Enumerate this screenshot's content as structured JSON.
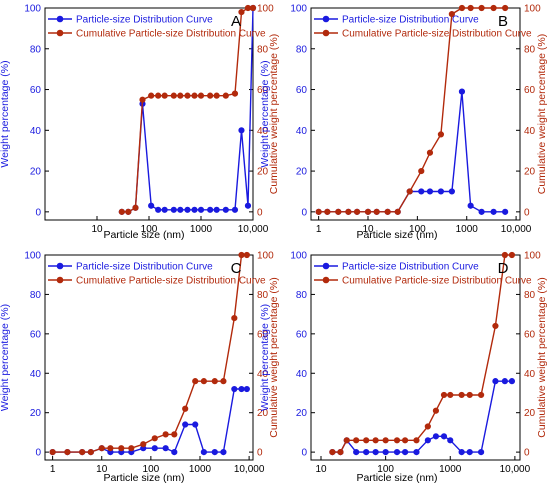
{
  "colors": {
    "weight": "#1a1adf",
    "cumulative": "#b22a0c",
    "marker_fill": "#ffffff",
    "frame": "#000000"
  },
  "shared": {
    "xlabel": "Particle size (nm)",
    "ylabel_left": "Weight percentage (%)",
    "ylabel_right": "Cumulative weight percentage (%)",
    "legend": [
      "Particle-size Distribution Curve",
      "Cumulative Particle-size Distribution Curve"
    ],
    "y_ticks": [
      "0",
      "20",
      "40",
      "60",
      "80",
      "100"
    ],
    "x_ticks": [
      "1",
      "10",
      "100",
      "1000",
      "10,000"
    ]
  },
  "chart_data": [
    {
      "panel": "A",
      "type": "line",
      "xscale": "log",
      "xlim": [
        1,
        10000
      ],
      "ylim": [
        -4,
        100
      ],
      "y2lim": [
        -4,
        100
      ],
      "x_tick_values": [
        10,
        100,
        1000,
        10000
      ],
      "x_tick_labels": [
        "10",
        "100",
        "1000",
        "10,000"
      ],
      "series": [
        {
          "name": "Particle-size Distribution Curve",
          "axis": "left",
          "x": [
            30,
            40,
            55,
            75,
            110,
            150,
            200,
            300,
            400,
            550,
            750,
            1000,
            1500,
            2000,
            3000,
            4500,
            6000,
            8000,
            10000
          ],
          "y": [
            0,
            0,
            2,
            53,
            3,
            1,
            1,
            1,
            1,
            1,
            1,
            1,
            1,
            1,
            1,
            1,
            40,
            3,
            100
          ]
        },
        {
          "name": "Cumulative Particle-size Distribution Curve",
          "axis": "right",
          "x": [
            30,
            40,
            55,
            75,
            110,
            150,
            200,
            300,
            400,
            550,
            750,
            1000,
            1500,
            2000,
            3000,
            4500,
            6000,
            8000,
            10000
          ],
          "y": [
            0,
            0,
            2,
            55,
            57,
            57,
            57,
            57,
            57,
            57,
            57,
            57,
            57,
            57,
            57,
            58,
            98,
            100,
            100
          ]
        }
      ]
    },
    {
      "panel": "B",
      "type": "line",
      "xscale": "log",
      "xlim": [
        0.7,
        12000
      ],
      "ylim": [
        -4,
        100
      ],
      "y2lim": [
        -4,
        100
      ],
      "x_tick_values": [
        1,
        10,
        100,
        1000,
        10000
      ],
      "x_tick_labels": [
        "1",
        "10",
        "100",
        "1000",
        "10,000"
      ],
      "series": [
        {
          "name": "Particle-size Distribution Curve",
          "axis": "left",
          "x": [
            1,
            1.5,
            2.5,
            4,
            6,
            10,
            15,
            25,
            40,
            70,
            120,
            180,
            300,
            500,
            800,
            1200,
            2000,
            3500,
            6000
          ],
          "y": [
            0,
            0,
            0,
            0,
            0,
            0,
            0,
            0,
            0,
            10,
            10,
            10,
            10,
            10,
            59,
            3,
            0,
            0,
            0
          ]
        },
        {
          "name": "Cumulative Particle-size Distribution Curve",
          "axis": "right",
          "x": [
            1,
            1.5,
            2.5,
            4,
            6,
            10,
            15,
            25,
            40,
            70,
            120,
            180,
            300,
            500,
            800,
            1200,
            2000,
            3500,
            6000
          ],
          "y": [
            0,
            0,
            0,
            0,
            0,
            0,
            0,
            0,
            0,
            10,
            20,
            29,
            38,
            97,
            100,
            100,
            100,
            100,
            100
          ]
        }
      ]
    },
    {
      "panel": "C",
      "type": "line",
      "xscale": "log",
      "xlim": [
        0.7,
        12000
      ],
      "ylim": [
        -4,
        100
      ],
      "y2lim": [
        -4,
        100
      ],
      "x_tick_values": [
        1,
        10,
        100,
        1000,
        10000
      ],
      "x_tick_labels": [
        "1",
        "10",
        "100",
        "1000",
        "10,000"
      ],
      "series": [
        {
          "name": "Particle-size Distribution Curve",
          "axis": "left",
          "x": [
            1,
            2,
            4,
            6,
            10,
            15,
            25,
            40,
            70,
            120,
            200,
            300,
            500,
            800,
            1200,
            2000,
            3000,
            5000,
            7000,
            9000
          ],
          "y": [
            0,
            0,
            0,
            0,
            2,
            0,
            0,
            0,
            2,
            2,
            2,
            0,
            14,
            14,
            0,
            0,
            0,
            32,
            32,
            32
          ]
        },
        {
          "name": "Cumulative Particle-size Distribution Curve",
          "axis": "right",
          "x": [
            1,
            2,
            4,
            6,
            10,
            15,
            25,
            40,
            70,
            120,
            200,
            300,
            500,
            800,
            1200,
            2000,
            3000,
            5000,
            7000,
            9000
          ],
          "y": [
            0,
            0,
            0,
            0,
            2,
            2,
            2,
            2,
            4,
            7,
            9,
            9,
            22,
            36,
            36,
            36,
            36,
            68,
            100,
            100
          ]
        }
      ]
    },
    {
      "panel": "D",
      "type": "line",
      "xscale": "log",
      "xlim": [
        7,
        12000
      ],
      "ylim": [
        -4,
        100
      ],
      "y2lim": [
        -4,
        100
      ],
      "x_tick_values": [
        10,
        100,
        1000,
        10000
      ],
      "x_tick_labels": [
        "10",
        "100",
        "1000",
        "10,000"
      ],
      "series": [
        {
          "name": "Particle-size Distribution Curve",
          "axis": "left",
          "x": [
            15,
            20,
            25,
            35,
            50,
            70,
            100,
            150,
            200,
            300,
            450,
            600,
            800,
            1000,
            1500,
            2000,
            3000,
            5000,
            7000,
            9000
          ],
          "y": [
            0,
            0,
            6,
            0,
            0,
            0,
            0,
            0,
            0,
            0,
            6,
            8,
            8,
            6,
            0,
            0,
            0,
            36,
            36,
            36
          ]
        },
        {
          "name": "Cumulative Particle-size Distribution Curve",
          "axis": "right",
          "x": [
            15,
            20,
            25,
            35,
            50,
            70,
            100,
            150,
            200,
            300,
            450,
            600,
            800,
            1000,
            1500,
            2000,
            3000,
            5000,
            7000,
            9000
          ],
          "y": [
            0,
            0,
            6,
            6,
            6,
            6,
            6,
            6,
            6,
            6,
            13,
            21,
            29,
            29,
            29,
            29,
            29,
            64,
            100,
            100
          ]
        }
      ]
    }
  ]
}
